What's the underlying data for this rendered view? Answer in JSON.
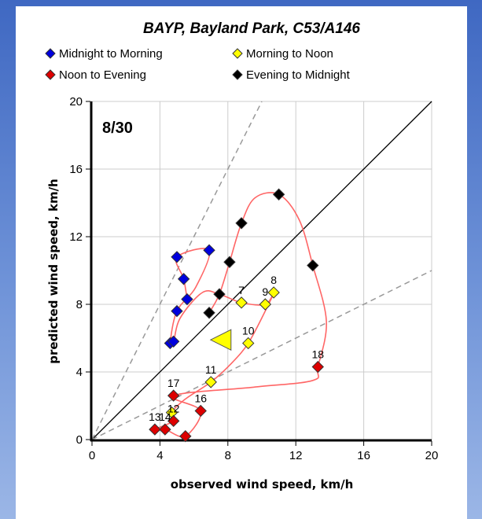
{
  "chart_data": {
    "type": "scatter",
    "title": "BAYP,  Bayland Park,  C53/A146",
    "panel_label": "8/30",
    "xlabel": "observed wind speed, km/h",
    "ylabel": "predicted wind speed, km/h",
    "xlim": [
      0,
      20
    ],
    "ylim": [
      0,
      20
    ],
    "xticks": [
      "0",
      "4",
      "8",
      "12",
      "16",
      "20"
    ],
    "yticks": [
      "0",
      "4",
      "8",
      "12",
      "16",
      "20"
    ],
    "grid": true,
    "legend_position": "top",
    "reference_lines": [
      {
        "kind": "one-to-one",
        "slope": 1,
        "style": "solid",
        "color": "#000000"
      },
      {
        "kind": "factor-of-two",
        "slope": 2,
        "style": "dashed",
        "color": "#999999"
      },
      {
        "kind": "factor-of-two",
        "slope": 0.5,
        "style": "dashed",
        "color": "#999999"
      }
    ],
    "trajectory_color": "#ff6666",
    "series": [
      {
        "name": "Midnight to Morning",
        "color": "#0000dd",
        "points": [
          {
            "x": 5.6,
            "y": 8.3,
            "label": ""
          },
          {
            "x": 5.4,
            "y": 9.5,
            "label": ""
          },
          {
            "x": 5.0,
            "y": 10.8,
            "label": ""
          },
          {
            "x": 6.9,
            "y": 11.2,
            "label": ""
          },
          {
            "x": 5.0,
            "y": 7.6,
            "label": ""
          },
          {
            "x": 4.6,
            "y": 5.7,
            "label": ""
          },
          {
            "x": 4.8,
            "y": 5.8,
            "label": ""
          }
        ]
      },
      {
        "name": "Morning to Noon",
        "color": "#ffff00",
        "points": [
          {
            "x": 4.7,
            "y": 1.6,
            "label": ""
          },
          {
            "x": 7.0,
            "y": 3.4,
            "label": "11"
          },
          {
            "x": 9.2,
            "y": 5.7,
            "label": "10"
          },
          {
            "x": 8.8,
            "y": 8.1,
            "label": "7"
          },
          {
            "x": 10.2,
            "y": 8.0,
            "label": "9"
          },
          {
            "x": 10.7,
            "y": 8.7,
            "label": "8"
          }
        ]
      },
      {
        "name": "Noon to Evening",
        "color": "#dd0000",
        "points": [
          {
            "x": 4.8,
            "y": 1.1,
            "label": "12"
          },
          {
            "x": 3.7,
            "y": 0.6,
            "label": "13"
          },
          {
            "x": 4.3,
            "y": 0.6,
            "label": "14"
          },
          {
            "x": 5.5,
            "y": 0.2,
            "label": ""
          },
          {
            "x": 6.4,
            "y": 1.7,
            "label": "16"
          },
          {
            "x": 4.8,
            "y": 2.6,
            "label": "17"
          },
          {
            "x": 13.3,
            "y": 4.3,
            "label": "18"
          }
        ]
      },
      {
        "name": "Evening to Midnight",
        "color": "#000000",
        "points": [
          {
            "x": 11.0,
            "y": 14.5,
            "label": ""
          },
          {
            "x": 8.8,
            "y": 12.8,
            "label": ""
          },
          {
            "x": 8.1,
            "y": 10.5,
            "label": ""
          },
          {
            "x": 7.5,
            "y": 8.6,
            "label": ""
          },
          {
            "x": 6.9,
            "y": 7.5,
            "label": ""
          },
          {
            "x": 13.0,
            "y": 10.3,
            "label": ""
          }
        ]
      }
    ],
    "trajectory": [
      [
        5.6,
        8.3
      ],
      [
        5.4,
        9.5
      ],
      [
        5.0,
        10.8
      ],
      [
        6.9,
        11.2
      ],
      [
        6.1,
        9.0
      ],
      [
        5.0,
        7.6
      ],
      [
        4.6,
        5.7
      ],
      [
        4.8,
        5.8
      ],
      [
        5.2,
        7.2
      ],
      [
        6.5,
        8.7
      ],
      [
        7.5,
        8.6
      ],
      [
        8.8,
        8.1
      ],
      [
        10.2,
        8.0
      ],
      [
        10.7,
        8.7
      ],
      [
        10.2,
        7.6
      ],
      [
        9.2,
        5.7
      ],
      [
        8.2,
        4.5
      ],
      [
        7.0,
        3.4
      ],
      [
        5.5,
        2.4
      ],
      [
        4.7,
        1.6
      ],
      [
        4.8,
        1.1
      ],
      [
        3.7,
        0.6
      ],
      [
        4.3,
        0.6
      ],
      [
        5.5,
        0.2
      ],
      [
        6.4,
        1.7
      ],
      [
        4.8,
        2.6
      ],
      [
        9.5,
        3.1
      ],
      [
        13.0,
        3.5
      ],
      [
        13.3,
        4.3
      ],
      [
        13.8,
        7.0
      ],
      [
        13.0,
        10.3
      ],
      [
        12.2,
        13.0
      ],
      [
        11.0,
        14.5
      ],
      [
        9.6,
        14.3
      ],
      [
        8.8,
        12.8
      ],
      [
        8.1,
        10.5
      ],
      [
        7.5,
        8.6
      ],
      [
        6.9,
        7.5
      ]
    ],
    "current_marker": {
      "x": 8.0,
      "y": 5.9,
      "shape": "triangle-left",
      "color": "#ffff00"
    }
  }
}
